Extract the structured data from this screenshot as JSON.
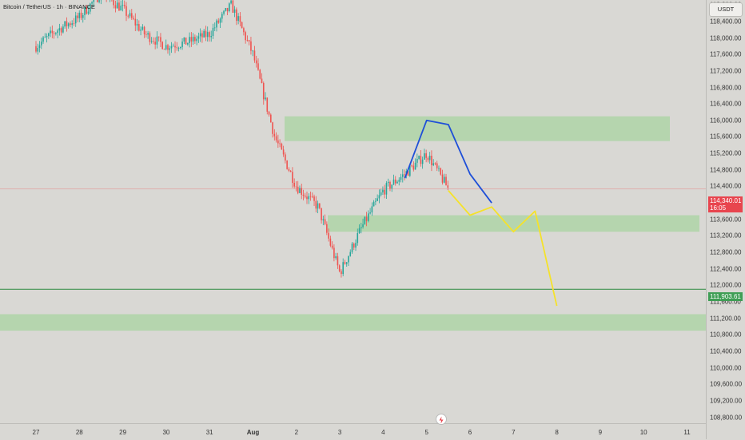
{
  "title": "Bitcoin / TetherUS · 1h · BINANCE",
  "currency": "USDT",
  "price_axis": [
    "118,800.00",
    "118,400.00",
    "118,000.00",
    "117,600.00",
    "117,200.00",
    "116,800.00",
    "116,400.00",
    "116,000.00",
    "115,600.00",
    "115,200.00",
    "114,800.00",
    "114,400.00",
    "114,000.00",
    "113,600.00",
    "113,200.00",
    "112,800.00",
    "112,400.00",
    "112,000.00",
    "111,600.00",
    "111,200.00",
    "110,800.00",
    "110,400.00",
    "110,000.00",
    "109,600.00",
    "109,200.00",
    "108,800.00"
  ],
  "time_axis": [
    "27",
    "28",
    "29",
    "30",
    "31",
    "Aug",
    "2",
    "3",
    "4",
    "5",
    "6",
    "7",
    "8",
    "9",
    "10",
    "11"
  ],
  "current_price": {
    "value": "114,340.01",
    "countdown": "16:05",
    "color": "#e8454e"
  },
  "support_level": {
    "value": "111,903.61",
    "color": "#3f9e55"
  },
  "colors": {
    "up": "#26a69a",
    "down": "#ef5350",
    "zone": "#aed5a7",
    "blue_path": "#1e4fd8",
    "yellow_path": "#f5e22a"
  },
  "icons": {
    "replay": "lightning-icon"
  },
  "chart_data": {
    "type": "candlestick",
    "symbol": "BTCUSDT",
    "interval": "1h",
    "y_range": [
      108600,
      119200
    ],
    "x_labels": [
      "27",
      "28",
      "29",
      "30",
      "31",
      "Aug",
      "2",
      "3",
      "4",
      "5",
      "6",
      "7",
      "8",
      "9",
      "10",
      "11"
    ],
    "horizontal_lines": [
      114340.01,
      111903.61
    ],
    "zones": [
      {
        "from": "Aug 1",
        "to": "Aug 10",
        "low": 115500,
        "high": 116100
      },
      {
        "from": "Aug 3",
        "to": "Aug 11",
        "low": 113300,
        "high": 113700
      },
      {
        "from": "Jul 26",
        "to": "Aug 11",
        "low": 110900,
        "high": 111300
      }
    ],
    "close_path": [
      [
        "Jul 27",
        117800
      ],
      [
        "Jul 27 12:00",
        118200
      ],
      [
        "Jul 28",
        118500
      ],
      [
        "Jul 28 12:00",
        119100
      ],
      [
        "Jul 29",
        118700
      ],
      [
        "Jul 29 12:00",
        118100
      ],
      [
        "Jul 30",
        117800
      ],
      [
        "Jul 30 12:00",
        117900
      ],
      [
        "Jul 31",
        118100
      ],
      [
        "Jul 31 12:00",
        118800
      ],
      [
        "Aug 1",
        117600
      ],
      [
        "Aug 1 12:00",
        115600
      ],
      [
        "Aug 2",
        114400
      ],
      [
        "Aug 2 12:00",
        113900
      ],
      [
        "Aug 3",
        112300
      ],
      [
        "Aug 3 12:00",
        113400
      ],
      [
        "Aug 4",
        114300
      ],
      [
        "Aug 4 12:00",
        114700
      ],
      [
        "Aug 5",
        115200
      ],
      [
        "Aug 5 12:00",
        114340
      ]
    ],
    "projections": [
      {
        "color": "blue",
        "points": [
          [
            "Aug 4 12:00",
            114600
          ],
          [
            "Aug 5",
            116000
          ],
          [
            "Aug 5 12:00",
            115900
          ],
          [
            "Aug 6",
            114700
          ],
          [
            "Aug 6 12:00",
            114000
          ]
        ]
      },
      {
        "color": "yellow",
        "points": [
          [
            "Aug 5 12:00",
            114300
          ],
          [
            "Aug 6",
            113700
          ],
          [
            "Aug 6 12:00",
            113900
          ],
          [
            "Aug 7",
            113300
          ],
          [
            "Aug 7 12:00",
            113800
          ],
          [
            "Aug 8",
            111500
          ]
        ]
      }
    ]
  }
}
